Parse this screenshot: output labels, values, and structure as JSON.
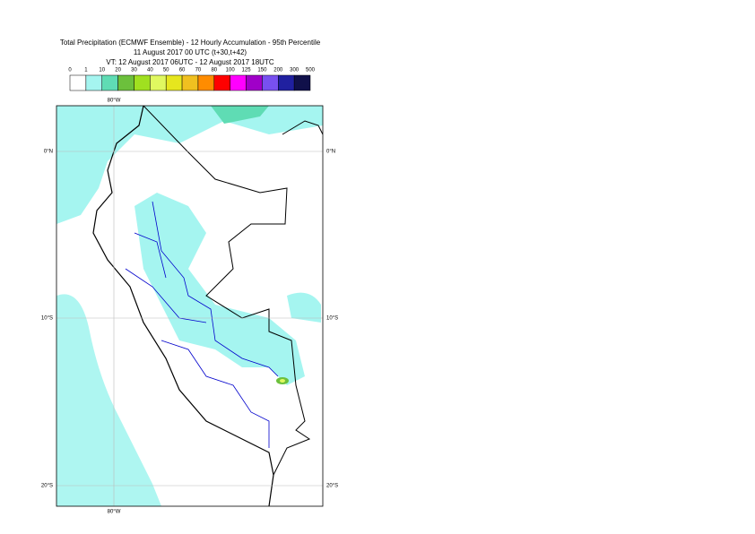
{
  "header": {
    "title": "Total Precipitation (ECMWF Ensemble) - 12 Hourly Accumulation - 95th Percentile",
    "base_time": "11 August 2017 00 UTC (t+30,t+42)",
    "valid_time": "VT: 12 August 2017 06UTC - 12 August 2017 18UTC"
  },
  "legend": {
    "levels": [
      0,
      1,
      10,
      20,
      30,
      40,
      50,
      60,
      70,
      80,
      100,
      125,
      150,
      200,
      300,
      500
    ],
    "colors": [
      "#ffffff",
      "#a5f5f0",
      "#5fdcb4",
      "#6cc03c",
      "#a0e020",
      "#e0f860",
      "#e6e61e",
      "#f0c020",
      "#ff8c00",
      "#ff0000",
      "#ff00ff",
      "#a000c8",
      "#7850f0",
      "#2020a0",
      "#10104a"
    ]
  },
  "map": {
    "lon_labels": [
      "80°W"
    ],
    "lat_labels": [
      "0°N",
      "10°S",
      "20°S"
    ]
  }
}
